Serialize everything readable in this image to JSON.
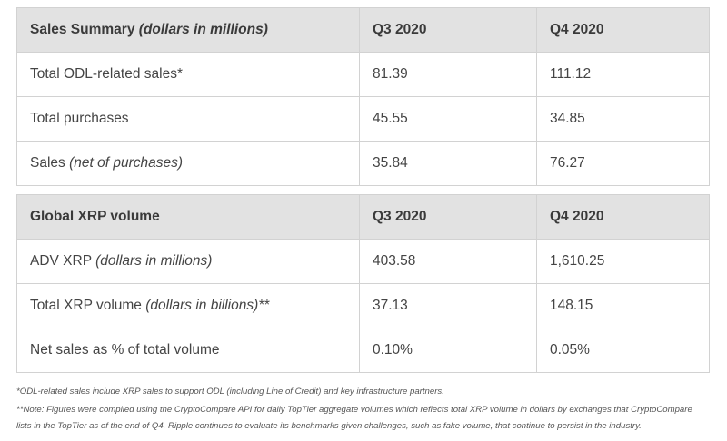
{
  "tables": [
    {
      "header": [
        {
          "text": "Sales Summary",
          "em": "(dollars in millions)"
        },
        {
          "text": "Q3 2020"
        },
        {
          "text": "Q4 2020"
        }
      ],
      "rows": [
        [
          {
            "text": "Total ODL-related sales*"
          },
          {
            "text": "81.39"
          },
          {
            "text": "111.12"
          }
        ],
        [
          {
            "text": "Total purchases"
          },
          {
            "text": "45.55"
          },
          {
            "text": "34.85"
          }
        ],
        [
          {
            "text": "Sales",
            "em": "(net of purchases)"
          },
          {
            "text": "35.84"
          },
          {
            "text": "76.27"
          }
        ]
      ]
    },
    {
      "header": [
        {
          "text": "Global XRP volume"
        },
        {
          "text": "Q3 2020"
        },
        {
          "text": "Q4 2020"
        }
      ],
      "rows": [
        [
          {
            "text": "ADV XRP",
            "em": "(dollars in millions)"
          },
          {
            "text": "403.58"
          },
          {
            "text": "1,610.25"
          }
        ],
        [
          {
            "text": "Total XRP volume",
            "em": "(dollars in billions)**"
          },
          {
            "text": "37.13"
          },
          {
            "text": "148.15"
          }
        ],
        [
          {
            "text": "Net sales as % of total volume"
          },
          {
            "text": "0.10%"
          },
          {
            "text": "0.05%"
          }
        ]
      ]
    }
  ],
  "footnotes": [
    "*ODL-related sales include XRP sales to support ODL (including Line of Credit) and key infrastructure partners.",
    "**Note: Figures were compiled using the CryptoCompare API for daily TopTier aggregate volumes which reflects total XRP volume in dollars by exchanges that CryptoCompare lists in the TopTier as of the end of Q4. Ripple continues to evaluate its benchmarks given challenges, such as fake volume, that continue to persist in the industry."
  ]
}
